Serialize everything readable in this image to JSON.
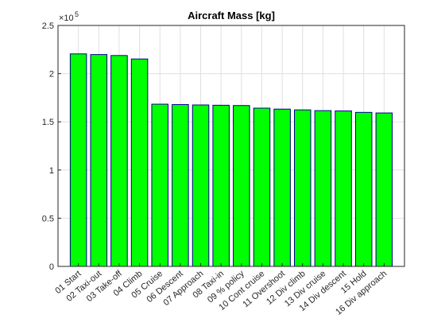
{
  "chart_data": {
    "type": "bar",
    "title": "Aircraft Mass [kg]",
    "xlabel": "",
    "ylabel": "",
    "categories": [
      "01 Start",
      "02 Taxi-out",
      "03 Take-off",
      "04 Climb",
      "05 Cruise",
      "06 Descent",
      "07 Approach",
      "08 Taxi-in",
      "09 % policy",
      "10 Cont cruise",
      "11 Overshoot",
      "12 Div climb",
      "13 Div cruise",
      "14 Div descent",
      "15 Hold",
      "16 Div approach"
    ],
    "values": [
      220500,
      219800,
      218800,
      215200,
      168300,
      167900,
      167500,
      167200,
      166900,
      164200,
      163200,
      162400,
      161600,
      161300,
      159800,
      159200
    ],
    "ylim": [
      0,
      250000
    ],
    "y_scale_exponent": 5,
    "y_ticks": [
      0,
      50000,
      100000,
      150000,
      200000,
      250000
    ],
    "y_tick_labels": [
      "0",
      "0.5",
      "1",
      "1.5",
      "2",
      "2.5"
    ],
    "exponent_label": "×10",
    "exponent_value": "5",
    "grid": true,
    "colors": {
      "bar_fill": "#00ff00",
      "bar_edge": "#00008b",
      "axis": "#262626",
      "grid": "#e0e0e0"
    }
  }
}
